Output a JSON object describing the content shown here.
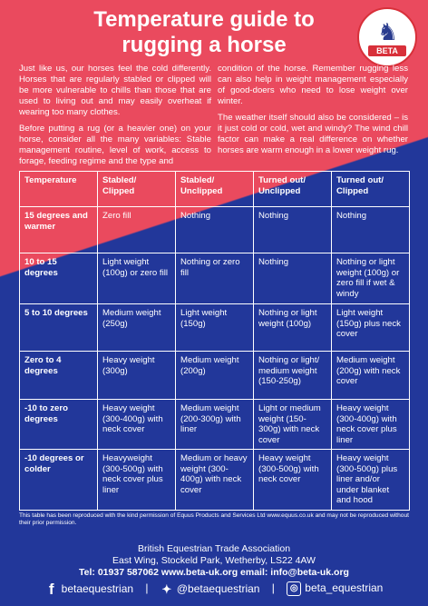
{
  "title": "Temperature guide to rugging a horse",
  "logo": {
    "text": "BETA",
    "icon": "horse-head-icon"
  },
  "intro": {
    "left": [
      "Just like us, our horses feel the cold differently. Horses that are regularly stabled or clipped will be more vulnerable to chills than those that are used to living out and may easily overheat if wearing too many clothes.",
      "Before putting a rug (or a heavier one) on your horse, consider all the many variables: Stable management routine, level of work, access to forage, feeding regime and the type and"
    ],
    "right": [
      "condition of the horse. Remember rugging less can also help in weight management especially of good-doers who need to lose weight over winter.",
      "The weather itself should also be considered – is it just cold or cold, wet and windy? The wind chill factor can make a real difference on whether horses are warm enough in a lower weight rug."
    ]
  },
  "table": {
    "headers": [
      "Temperature",
      "Stabled/ Clipped",
      "Stabled/ Unclipped",
      "Turned out/ Unclipped",
      "Turned out/ Clipped"
    ],
    "rows": [
      [
        "15 degrees and warmer",
        "Zero fill",
        "Nothing",
        "Nothing",
        "Nothing"
      ],
      [
        "10 to 15 degrees",
        "Light weight (100g) or zero fill",
        "Nothing or zero fill",
        "Nothing",
        "Nothing or light weight (100g) or zero fill if wet & windy"
      ],
      [
        "5 to 10 degrees",
        "Medium weight (250g)",
        "Light weight (150g)",
        "Nothing or light weight (100g)",
        "Light weight (150g) plus neck cover"
      ],
      [
        "Zero to 4 degrees",
        "Heavy weight (300g)",
        "Medium weight (200g)",
        "Nothing or light/ medium weight (150-250g)",
        "Medium weight (200g) with neck cover"
      ],
      [
        "-10 to zero degrees",
        "Heavy weight (300-400g) with neck cover",
        "Medium weight (200-300g) with liner",
        "Light or medium weight (150-300g) with neck cover",
        "Heavy weight (300-400g) with neck cover plus liner"
      ],
      [
        "-10 degrees or colder",
        "Heavyweight (300-500g) with neck cover plus liner",
        "Medium or heavy weight (300-400g) with neck cover",
        "Heavy weight (300-500g) with neck cover",
        "Heavy weight (300-500g) plus liner and/or under blanket and hood"
      ]
    ]
  },
  "footnote": "This table has been reproduced with the kind permission of Equus Products and Services Ltd  www.equus.co.uk and may not be reproduced without their prior permission.",
  "org": {
    "name": "British Equestrian Trade Association",
    "address": "East Wing, Stockeld Park, Wetherby, LS22 4AW",
    "contact": "Tel: 01937 587062  www.beta-uk.org  email: info@beta-uk.org"
  },
  "social": [
    {
      "icon": "facebook-icon",
      "glyph": "f",
      "handle": "betaequestrian"
    },
    {
      "icon": "twitter-icon",
      "glyph": "✉",
      "handle": "@betaequestrian"
    },
    {
      "icon": "instagram-icon",
      "glyph": "◎",
      "handle": "beta_equestrian"
    }
  ],
  "social_separator": "|",
  "colors": {
    "top": "#ea4a5e",
    "bottom": "#22379a",
    "text": "#ffffff"
  }
}
